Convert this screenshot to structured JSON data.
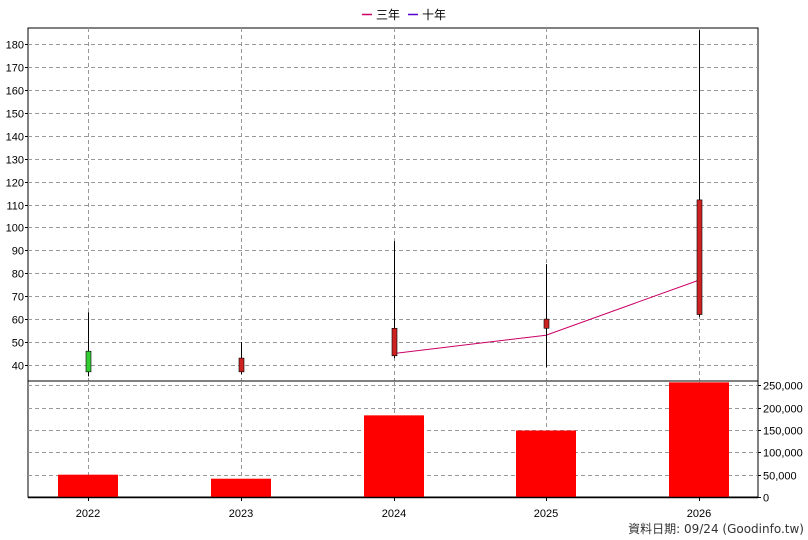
{
  "chart_data": {
    "type": "candlestick",
    "legend": {
      "placement": "top-center",
      "items": [
        {
          "label": "三年",
          "color": "#cc0066"
        },
        {
          "label": "十年",
          "color": "#5500cc"
        }
      ]
    },
    "categories": [
      "2022",
      "2023",
      "2024",
      "2025",
      "2026"
    ],
    "price": {
      "ylim": [
        33,
        187
      ],
      "ticks": [
        40,
        50,
        60,
        70,
        80,
        90,
        100,
        110,
        120,
        130,
        140,
        150,
        160,
        170,
        180
      ],
      "tick_labels": [
        "40",
        "50",
        "60",
        "70",
        "80",
        "90",
        "100",
        "110",
        "120",
        "130",
        "140",
        "150",
        "160",
        "170",
        "180"
      ],
      "candles": [
        {
          "open": 37,
          "close": 46,
          "high": 63,
          "low": 35,
          "color": "#33cc33"
        },
        {
          "open": 43,
          "close": 37,
          "high": 50,
          "low": 36,
          "color": "#cc2222"
        },
        {
          "open": 56,
          "close": 44,
          "high": 94,
          "low": 43,
          "color": "#cc2222"
        },
        {
          "open": 60,
          "close": 56,
          "high": 84,
          "low": 39,
          "color": "#cc2222"
        },
        {
          "open": 112,
          "close": 62,
          "high": 186,
          "low": 61,
          "color": "#cc2222"
        }
      ],
      "line_three_year": {
        "name": "三年",
        "color": "#cc0066",
        "values": [
          null,
          null,
          45,
          53,
          77
        ]
      }
    },
    "volume": {
      "ylim": [
        0,
        260000
      ],
      "ticks": [
        0,
        50000,
        100000,
        150000,
        200000,
        250000
      ],
      "tick_labels": [
        "0",
        "50,000",
        "100,000",
        "150,000",
        "200,000",
        "250,000"
      ],
      "values": [
        50000,
        41000,
        183000,
        149000,
        257000
      ],
      "color": "#ff0000"
    },
    "grid": true
  },
  "footer": {
    "text": "資料日期: 09/24  (Goodinfo.tw)"
  }
}
